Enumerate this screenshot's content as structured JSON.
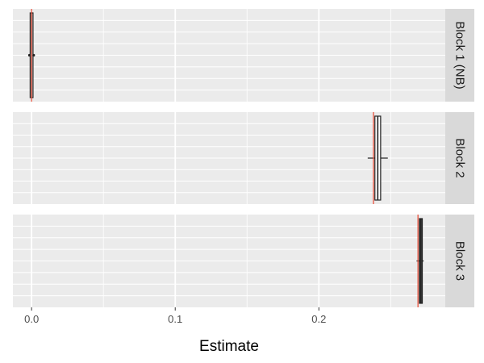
{
  "chart_data": {
    "type": "boxplot",
    "title": "",
    "xlabel": "Estimate",
    "ylabel": "",
    "xlim": [
      -0.013,
      0.288
    ],
    "x_ticks": [
      0.0,
      0.1,
      0.2
    ],
    "x_tick_labels": [
      "0.0",
      "0.1",
      "0.2"
    ],
    "grid": true,
    "legend": "none",
    "facets": [
      {
        "label": "Block 1 (NB)",
        "reference": 0.0,
        "box": {
          "min": -0.001,
          "q1": -0.001,
          "median": 0.0,
          "q3": 0.001,
          "max": 0.001
        },
        "outliers": [
          -0.0015,
          0.0015
        ]
      },
      {
        "label": "Block 2",
        "reference": 0.238,
        "box": {
          "min": 0.234,
          "q1": 0.239,
          "median": 0.241,
          "q3": 0.243,
          "max": 0.248
        },
        "outliers": []
      },
      {
        "label": "Block 3",
        "reference": 0.269,
        "box": {
          "min": 0.268,
          "q1": 0.27,
          "median": 0.2705,
          "q3": 0.272,
          "max": 0.273
        },
        "outliers": []
      }
    ]
  },
  "colors": {
    "panel_background": "#ebebeb",
    "grid": "#ffffff",
    "strip_background": "#d9d9d9",
    "reference_line": "#e8533f",
    "box_stroke": "#222222",
    "box_fill": "#ffffff",
    "dense_box_fill": "#333333"
  }
}
